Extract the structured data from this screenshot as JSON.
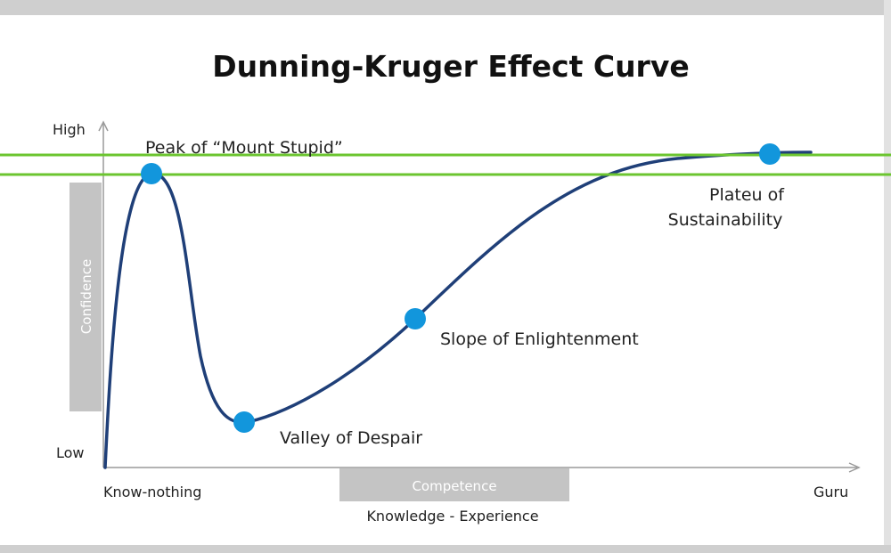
{
  "title": "Dunning-Kruger Effect Curve",
  "y_axis": {
    "high_label": "High",
    "low_label": "Low",
    "bar_label": "Confidence"
  },
  "x_axis": {
    "start_label": "Know-nothing",
    "end_label": "Guru",
    "bar_label": "Competence",
    "axis_label": "Knowledge - Experience"
  },
  "stages": {
    "peak": "Peak of “Mount Stupid”",
    "valley": "Valley of Despair",
    "slope": "Slope of Enlightenment",
    "plateau_line1": "Plateu of",
    "plateau_line2": "Sustainability"
  },
  "colors": {
    "curve": "#1f3f78",
    "marker": "#1296dc",
    "highlight_line": "#6cc530",
    "bar": "#c4c4c4",
    "axis": "#9a9a9a"
  }
}
